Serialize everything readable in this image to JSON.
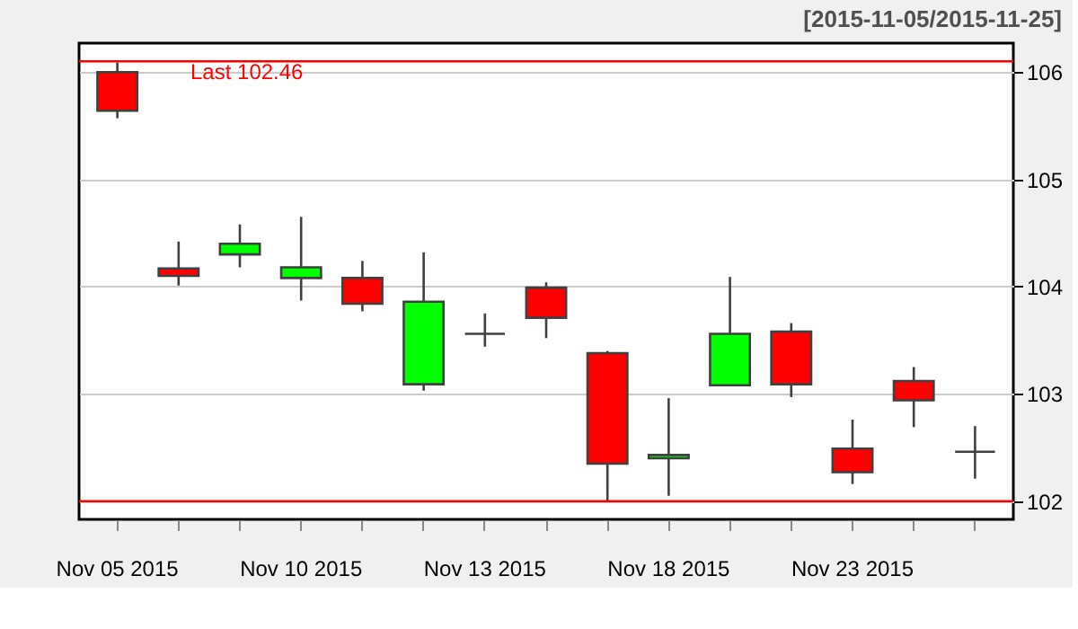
{
  "chart_data": {
    "type": "candlestick",
    "title": "[2015-11-05/2015-11-25]",
    "categories": [
      "Nov 05 2015",
      null,
      null,
      "Nov 10 2015",
      null,
      null,
      "Nov 13 2015",
      null,
      null,
      "Nov 18 2015",
      null,
      null,
      "Nov 23 2015",
      null,
      null
    ],
    "ohlc": [
      [
        106.0,
        106.09,
        105.57,
        105.64
      ],
      [
        104.17,
        104.42,
        104.01,
        104.1
      ],
      [
        104.3,
        104.58,
        104.18,
        104.4
      ],
      [
        104.08,
        104.65,
        103.87,
        104.18
      ],
      [
        104.08,
        104.24,
        103.77,
        103.84
      ],
      [
        103.09,
        104.32,
        103.03,
        103.86
      ],
      [
        103.56,
        103.75,
        103.44,
        103.56
      ],
      [
        103.99,
        104.04,
        103.52,
        103.71
      ],
      [
        103.38,
        103.4,
        102.0,
        102.35
      ],
      [
        102.4,
        102.96,
        102.05,
        102.43
      ],
      [
        103.08,
        104.09,
        103.08,
        103.56
      ],
      [
        103.58,
        103.66,
        102.97,
        103.09
      ],
      [
        102.49,
        102.76,
        102.16,
        102.27
      ],
      [
        103.12,
        103.25,
        102.69,
        102.94
      ],
      [
        102.46,
        102.7,
        102.21,
        102.46
      ]
    ],
    "colors": [
      "#ff0000",
      "#ff0000",
      "#00ff00",
      "#00ff00",
      "#ff0000",
      "#00ff00",
      "#404040",
      "#ff0000",
      "#ff0000",
      "#00ff00",
      "#00ff00",
      "#ff0000",
      "#ff0000",
      "#ff0000",
      "#404040"
    ],
    "ylim": [
      101.83,
      106.27
    ],
    "yticks": [
      102,
      103,
      104,
      105,
      106
    ],
    "grid": "y",
    "ref_lines": [
      {
        "axis": "y",
        "value": 106.1,
        "label": "Last 102.46",
        "color": "#ff0000"
      },
      {
        "axis": "y",
        "value": 102.0,
        "label": null,
        "color": "#ff0000"
      }
    ]
  }
}
